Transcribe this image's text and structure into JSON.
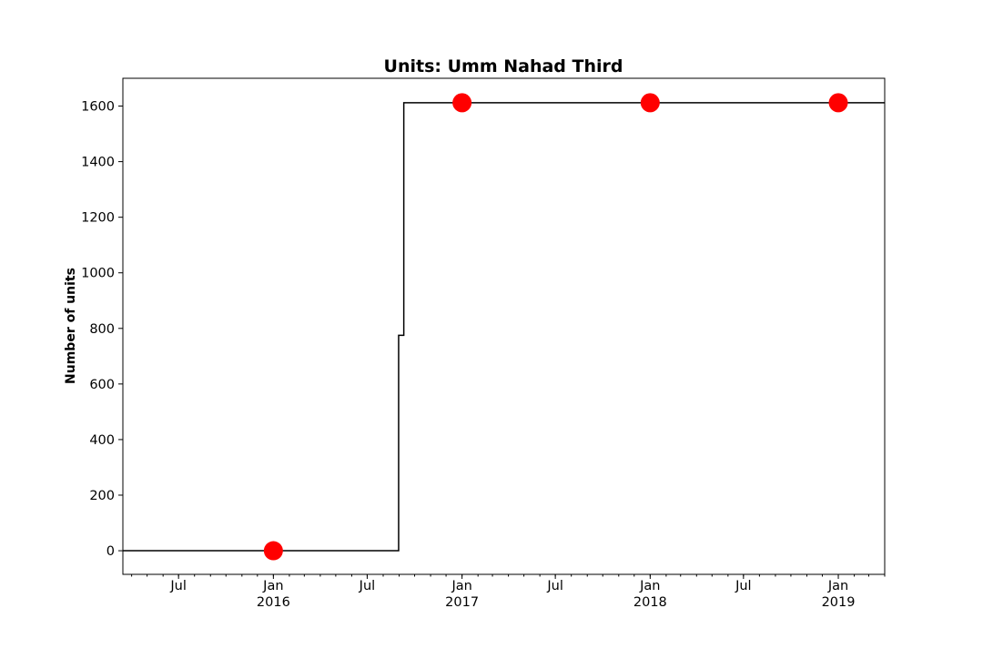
{
  "chart_data": {
    "type": "line",
    "title": "Units: Umm Nahad Third",
    "xlabel": "",
    "ylabel": "Number of units",
    "xlim": [
      "2015-03-15",
      "2019-04-01"
    ],
    "ylim": [
      -85,
      1700
    ],
    "y_ticks": [
      0,
      200,
      400,
      600,
      800,
      1000,
      1200,
      1400,
      1600
    ],
    "x_ticks": [
      {
        "date": "2015-07-01",
        "label": "Jul",
        "sublabel": ""
      },
      {
        "date": "2016-01-01",
        "label": "Jan",
        "sublabel": "2016"
      },
      {
        "date": "2016-07-01",
        "label": "Jul",
        "sublabel": ""
      },
      {
        "date": "2017-01-01",
        "label": "Jan",
        "sublabel": "2017"
      },
      {
        "date": "2017-07-01",
        "label": "Jul",
        "sublabel": ""
      },
      {
        "date": "2018-01-01",
        "label": "Jan",
        "sublabel": "2018"
      },
      {
        "date": "2018-07-01",
        "label": "Jul",
        "sublabel": ""
      },
      {
        "date": "2019-01-01",
        "label": "Jan",
        "sublabel": "2019"
      }
    ],
    "series": [
      {
        "type": "step",
        "color": "#000000",
        "points": [
          {
            "x": "2015-03-15",
            "y": 0
          },
          {
            "x": "2016-08-31",
            "y": 0
          },
          {
            "x": "2016-08-31",
            "y": 775
          },
          {
            "x": "2016-09-10",
            "y": 775
          },
          {
            "x": "2016-09-10",
            "y": 1612
          },
          {
            "x": "2019-04-01",
            "y": 1612
          }
        ]
      },
      {
        "type": "scatter",
        "color": "#ff0000",
        "points": [
          {
            "x": "2016-01-01",
            "y": 0
          },
          {
            "x": "2017-01-01",
            "y": 1612
          },
          {
            "x": "2018-01-01",
            "y": 1612
          },
          {
            "x": "2019-01-01",
            "y": 1612
          }
        ]
      }
    ],
    "grid": false,
    "legend": "none"
  }
}
